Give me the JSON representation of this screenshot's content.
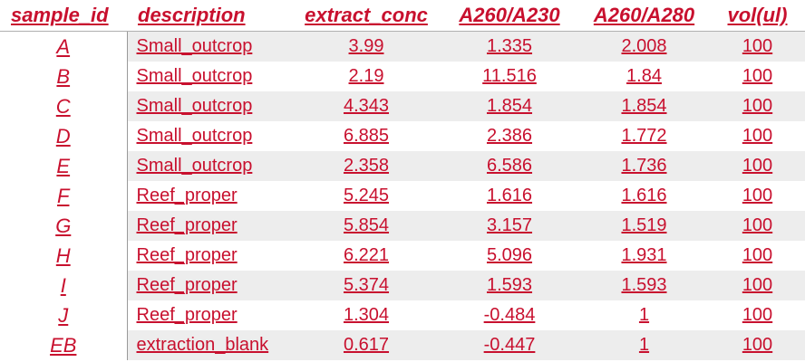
{
  "table": {
    "headers": [
      "sample_id",
      "description",
      "extract_conc",
      "A260/A230",
      "A260/A280",
      "vol(ul)"
    ],
    "rows": [
      [
        "A",
        "Small_outcrop",
        "3.99",
        "1.335",
        "2.008",
        "100"
      ],
      [
        "B",
        "Small_outcrop",
        "2.19",
        "11.516",
        "1.84",
        "100"
      ],
      [
        "C",
        "Small_outcrop",
        "4.343",
        "1.854",
        "1.854",
        "100"
      ],
      [
        "D",
        "Small_outcrop",
        "6.885",
        "2.386",
        "1.772",
        "100"
      ],
      [
        "E",
        "Small_outcrop",
        "2.358",
        "6.586",
        "1.736",
        "100"
      ],
      [
        "F",
        "Reef_proper",
        "5.245",
        "1.616",
        "1.616",
        "100"
      ],
      [
        "G",
        "Reef_proper",
        "5.854",
        "3.157",
        "1.519",
        "100"
      ],
      [
        "H",
        "Reef_proper",
        "6.221",
        "5.096",
        "1.931",
        "100"
      ],
      [
        "I",
        "Reef_proper",
        "5.374",
        "1.593",
        "1.593",
        "100"
      ],
      [
        "J",
        "Reef_proper",
        "1.304",
        "-0.484",
        "1",
        "100"
      ],
      [
        "EB",
        "extraction_blank",
        "0.617",
        "-0.447",
        "1",
        "100"
      ]
    ]
  },
  "colors": {
    "text": "#c8102e",
    "stripe": "#ededed"
  }
}
